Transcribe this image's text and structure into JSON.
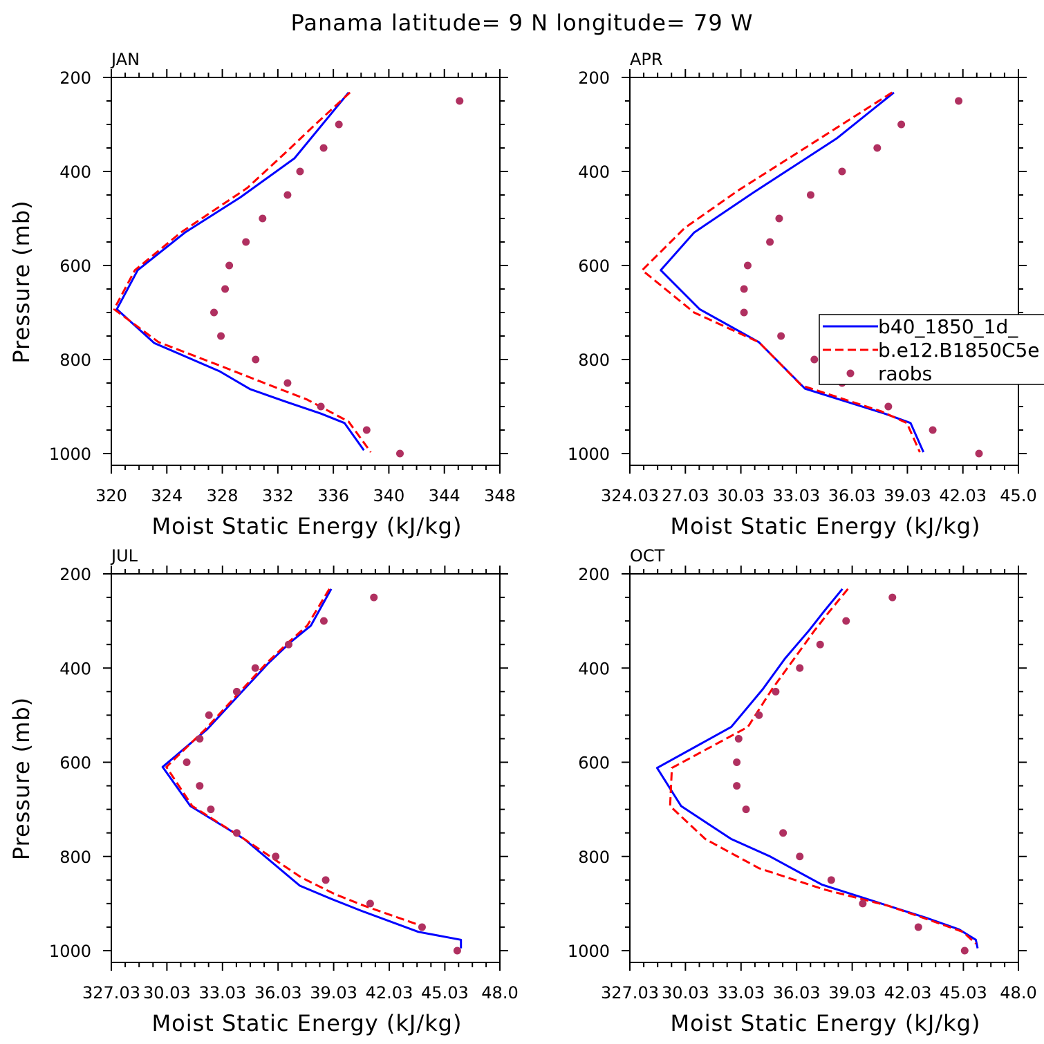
{
  "suptitle": "Panama  latitude= 9 N longitude= 79 W",
  "colors": {
    "model1": "#0000ff",
    "model2": "#ff0000",
    "raobs": "#b03060",
    "axes": "#000000",
    "background": "#ffffff"
  },
  "legend": {
    "placement": "right-middle of APR panel (clipped at figure edge)",
    "entries": [
      {
        "label": "b40_1850_1d_",
        "style": "solid-line",
        "color": "#0000ff"
      },
      {
        "label": "b.e12.B1850C5e",
        "style": "dashed-line",
        "color": "#ff0000"
      },
      {
        "label": "raobs",
        "style": "dots",
        "color": "#b03060"
      }
    ]
  },
  "chart_data": [
    {
      "type": "line",
      "title": "JAN",
      "xlabel": "Moist Static Energy (kJ/kg)",
      "ylabel": "Pressure (mb)",
      "xlim": [
        320,
        348
      ],
      "ylim": [
        200,
        1000
      ],
      "y_inverted": true,
      "xticks": [
        320,
        324,
        328,
        332,
        336,
        340,
        344,
        348
      ],
      "xtick_labels": [
        "320",
        "324",
        "328",
        "332",
        "336",
        "340",
        "344",
        "348"
      ],
      "yticks": [
        200,
        400,
        600,
        800,
        1000
      ],
      "ytick_labels": [
        "200",
        "400",
        "600",
        "800",
        "1000"
      ],
      "series": [
        {
          "name": "b40_1850_1d_",
          "style": "solid",
          "color": "#0000ff",
          "x": [
            337.1,
            333.2,
            329.3,
            325.3,
            321.9,
            320.4,
            323.1,
            327.8,
            330.0,
            332.6,
            335.1,
            336.8,
            338.2
          ],
          "y": [
            232,
            372,
            455,
            530,
            610,
            693,
            765,
            825,
            863,
            890,
            915,
            935,
            993
          ]
        },
        {
          "name": "b.e12.B1850C5e",
          "style": "dashed",
          "color": "#ff0000",
          "x": [
            337.2,
            334.7,
            332.7,
            329.8,
            325.0,
            321.7,
            320.2,
            323.4,
            328.0,
            331.2,
            334.1,
            337.1,
            338.7
          ],
          "y": [
            232,
            300,
            356,
            435,
            530,
            610,
            693,
            763,
            815,
            852,
            885,
            932,
            997
          ]
        },
        {
          "name": "raobs",
          "style": "markers",
          "color": "#b03060",
          "x": [
            345.1,
            336.4,
            335.3,
            333.6,
            332.7,
            330.9,
            329.7,
            328.5,
            328.2,
            327.4,
            327.9,
            330.4,
            332.7,
            335.1,
            338.4,
            340.8
          ],
          "y": [
            250,
            300,
            350,
            400,
            450,
            500,
            550,
            600,
            650,
            700,
            750,
            800,
            850,
            900,
            950,
            1000
          ]
        }
      ]
    },
    {
      "type": "line",
      "title": "APR",
      "xlabel": "Moist Static Energy (kJ/kg)",
      "ylabel": "",
      "xlim": [
        324.03,
        345.03
      ],
      "ylim": [
        200,
        1000
      ],
      "y_inverted": true,
      "xticks": [
        324.03,
        327.03,
        330.03,
        333.03,
        336.03,
        339.03,
        342.03,
        345.03
      ],
      "xtick_labels": [
        "324.03",
        "27.03",
        "30.03",
        "33.03",
        "36.03",
        "39.03",
        "42.03",
        "45.0"
      ],
      "yticks": [
        200,
        400,
        600,
        800,
        1000
      ],
      "ytick_labels": [
        "200",
        "400",
        "600",
        "800",
        "1000"
      ],
      "series": [
        {
          "name": "b40_1850_1d_",
          "style": "solid",
          "color": "#0000ff",
          "x": [
            338.3,
            335.2,
            330.7,
            327.5,
            325.7,
            327.8,
            331.0,
            333.5,
            337.8,
            339.2,
            339.9
          ],
          "y": [
            232,
            330,
            445,
            530,
            610,
            693,
            763,
            862,
            915,
            935,
            997
          ]
        },
        {
          "name": "b.e12.B1850C5e",
          "style": "dashed",
          "color": "#ff0000",
          "x": [
            338.2,
            333.9,
            329.9,
            327.0,
            324.7,
            327.5,
            331.0,
            333.3,
            337.6,
            339.0,
            339.7
          ],
          "y": [
            232,
            340,
            440,
            520,
            610,
            700,
            763,
            855,
            910,
            935,
            997
          ]
        },
        {
          "name": "raobs",
          "style": "markers",
          "color": "#b03060",
          "x": [
            341.8,
            338.7,
            337.4,
            335.5,
            333.8,
            332.1,
            331.6,
            330.4,
            330.2,
            330.2,
            332.2,
            334.0,
            335.5,
            338.0,
            340.4,
            342.9
          ],
          "y": [
            250,
            300,
            350,
            400,
            450,
            500,
            550,
            600,
            650,
            700,
            750,
            800,
            850,
            900,
            950,
            1000
          ]
        }
      ]
    },
    {
      "type": "line",
      "title": "JUL",
      "xlabel": "Moist Static Energy (kJ/kg)",
      "ylabel": "Pressure (mb)",
      "xlim": [
        327.03,
        348.0
      ],
      "ylim": [
        200,
        1000
      ],
      "y_inverted": true,
      "xticks": [
        327.03,
        330.03,
        333.03,
        336.03,
        339.03,
        342.03,
        345.03,
        348.0
      ],
      "xtick_labels": [
        "327.03",
        "30.03",
        "33.03",
        "36.03",
        "39.03",
        "42.03",
        "45.03",
        "48.0"
      ],
      "yticks": [
        200,
        400,
        600,
        800,
        1000
      ],
      "ytick_labels": [
        "200",
        "400",
        "600",
        "800",
        "1000"
      ],
      "series": [
        {
          "name": "b40_1850_1d_",
          "style": "solid",
          "color": "#0000ff",
          "x": [
            338.9,
            337.8,
            336.7,
            335.5,
            334.2,
            332.2,
            329.8,
            331.3,
            334.2,
            337.2,
            338.9,
            340.5,
            343.6,
            345.9,
            345.9
          ],
          "y": [
            232,
            310,
            345,
            390,
            445,
            530,
            610,
            693,
            763,
            862,
            890,
            915,
            960,
            977,
            995
          ]
        },
        {
          "name": "b.e12.B1850C5e",
          "style": "dashed",
          "color": "#ff0000",
          "x": [
            338.8,
            337.6,
            336.6,
            335.4,
            334.1,
            332.1,
            330.0,
            331.4,
            334.2,
            337.3,
            339.1,
            340.7,
            343.6
          ],
          "y": [
            232,
            310,
            345,
            390,
            445,
            530,
            610,
            693,
            763,
            845,
            880,
            905,
            945
          ]
        },
        {
          "name": "raobs",
          "style": "markers",
          "color": "#b03060",
          "x": [
            341.2,
            338.5,
            336.6,
            334.8,
            333.8,
            332.3,
            331.8,
            331.1,
            331.8,
            332.4,
            333.8,
            335.9,
            338.6,
            341.0,
            343.8,
            345.7
          ],
          "y": [
            250,
            300,
            350,
            400,
            450,
            500,
            550,
            600,
            650,
            700,
            750,
            800,
            850,
            900,
            950,
            1000
          ]
        }
      ]
    },
    {
      "type": "line",
      "title": "OCT",
      "xlabel": "Moist Static Energy (kJ/kg)",
      "ylabel": "",
      "xlim": [
        327.03,
        348.0
      ],
      "ylim": [
        200,
        1000
      ],
      "y_inverted": true,
      "xticks": [
        327.03,
        330.03,
        333.03,
        336.03,
        339.03,
        342.03,
        345.03,
        348.0
      ],
      "xtick_labels": [
        "327.03",
        "30.03",
        "33.03",
        "36.03",
        "39.03",
        "42.03",
        "45.03",
        "48.0"
      ],
      "yticks": [
        200,
        400,
        600,
        800,
        1000
      ],
      "ytick_labels": [
        "200",
        "400",
        "600",
        "800",
        "1000"
      ],
      "series": [
        {
          "name": "b40_1850_1d_",
          "style": "solid",
          "color": "#0000ff",
          "x": [
            338.5,
            337.5,
            336.7,
            335.4,
            334.2,
            332.5,
            328.5,
            329.8,
            332.5,
            334.6,
            337.4,
            341.0,
            343.0,
            344.8,
            345.7,
            345.8
          ],
          "y": [
            232,
            280,
            320,
            380,
            445,
            525,
            612,
            693,
            763,
            800,
            860,
            905,
            930,
            955,
            977,
            995
          ]
        },
        {
          "name": "b.e12.B1850C5e",
          "style": "dashed",
          "color": "#ff0000",
          "x": [
            338.8,
            337.8,
            337.0,
            335.9,
            334.7,
            333.4,
            329.3,
            329.2,
            331.1,
            334.0,
            337.5,
            341.0,
            343.2,
            345.0,
            345.7
          ],
          "y": [
            232,
            280,
            320,
            380,
            445,
            525,
            612,
            693,
            763,
            825,
            870,
            905,
            935,
            960,
            985
          ]
        },
        {
          "name": "raobs",
          "style": "markers",
          "color": "#b03060",
          "x": [
            341.2,
            338.7,
            337.3,
            336.2,
            334.9,
            334.0,
            332.9,
            332.8,
            332.8,
            333.3,
            335.3,
            336.2,
            337.9,
            339.6,
            342.6,
            345.1
          ],
          "y": [
            250,
            300,
            350,
            400,
            450,
            500,
            550,
            600,
            650,
            700,
            750,
            800,
            850,
            900,
            950,
            1000
          ]
        }
      ]
    }
  ]
}
